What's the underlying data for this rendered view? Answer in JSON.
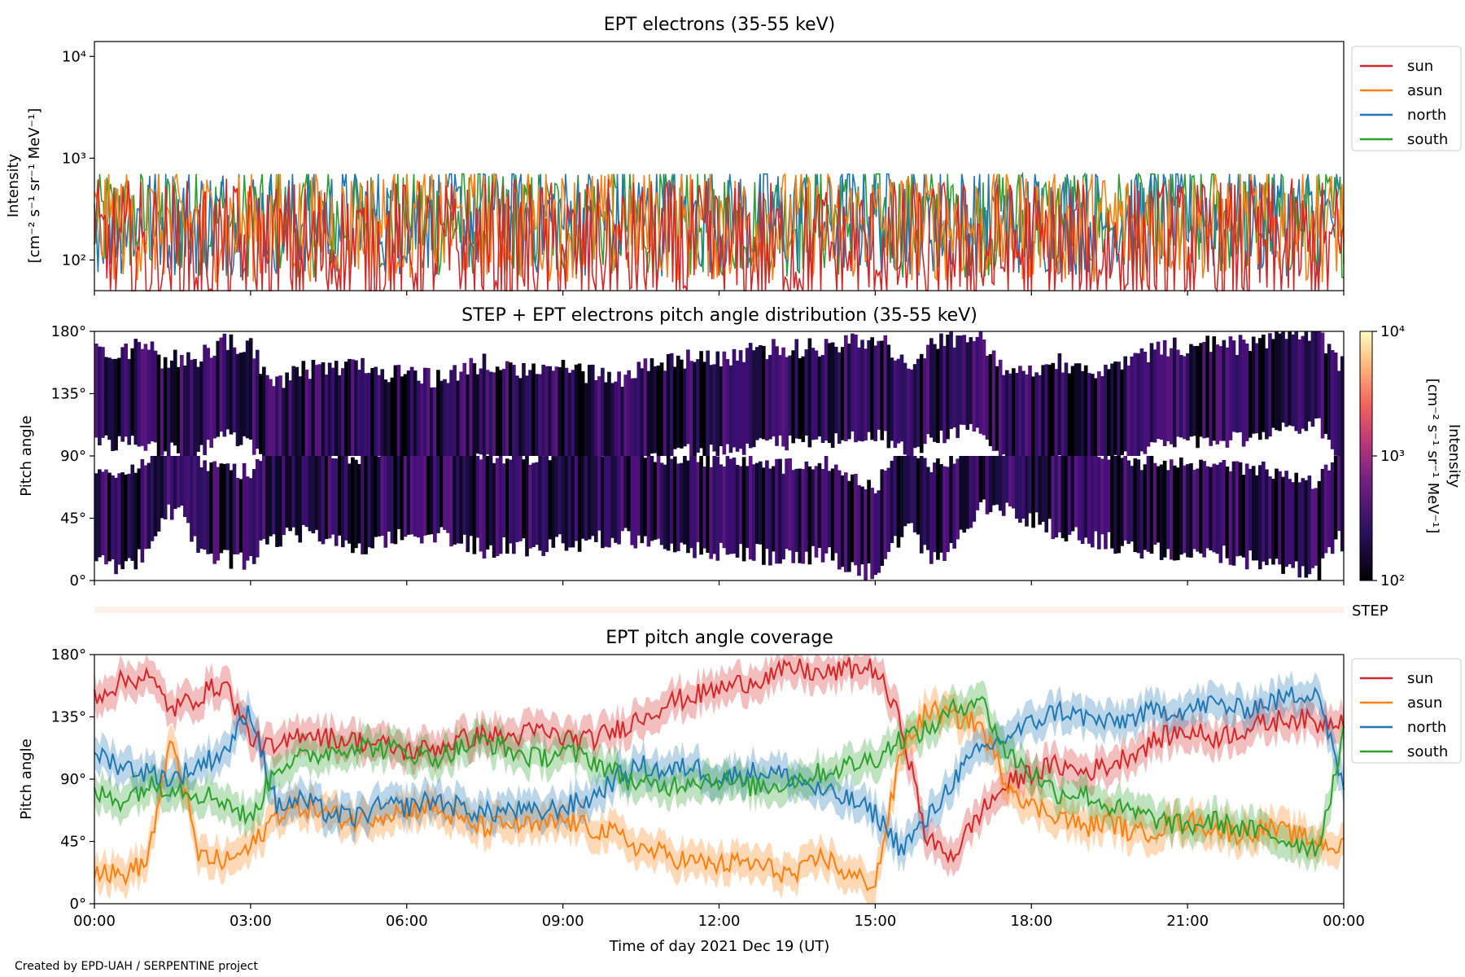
{
  "credit": "Created by EPD-UAH / SERPENTINE project",
  "xlabel": "Time of day 2021 Dec 19 (UT)",
  "xticks": [
    "00:00",
    "03:00",
    "06:00",
    "09:00",
    "12:00",
    "15:00",
    "18:00",
    "21:00",
    "00:00"
  ],
  "colors": {
    "sun": "#d62728",
    "asun": "#ff7f0e",
    "north": "#1f77b4",
    "south": "#2ca02c"
  },
  "chart_data": [
    {
      "id": "intensity",
      "type": "line",
      "title": "EPT electrons (35-55 keV)",
      "ylabel_line1": "Intensity",
      "ylabel_line2": "[cm⁻² s⁻¹ sr⁻¹ MeV⁻¹]",
      "yscale": "log",
      "ylim": [
        50,
        14000
      ],
      "yticks": [
        {
          "value": 100,
          "label": "10²"
        },
        {
          "value": 1000,
          "label": "10³"
        },
        {
          "value": 10000,
          "label": "10⁴"
        }
      ],
      "xlim_hours": [
        0,
        24
      ],
      "legend": "outside-right",
      "series": [
        {
          "name": "sun",
          "color": "#d62728",
          "typical": 120,
          "spread": 0.45
        },
        {
          "name": "asun",
          "color": "#ff7f0e",
          "typical": 220,
          "spread": 0.35
        },
        {
          "name": "north",
          "color": "#1f77b4",
          "typical": 250,
          "spread": 0.35
        },
        {
          "name": "south",
          "color": "#2ca02c",
          "typical": 240,
          "spread": 0.35
        }
      ]
    },
    {
      "id": "pad",
      "type": "heatmap",
      "title": "STEP + EPT electrons pitch angle distribution (35-55 keV)",
      "ylabel": "Pitch angle",
      "ylim": [
        0,
        180
      ],
      "yticks": [
        {
          "value": 0,
          "label": "0°"
        },
        {
          "value": 45,
          "label": "45°"
        },
        {
          "value": 90,
          "label": "90°"
        },
        {
          "value": 135,
          "label": "135°"
        },
        {
          "value": 180,
          "label": "180°"
        }
      ],
      "colorbar": {
        "label_line1": "Intensity",
        "label_line2": "[cm⁻² s⁻¹ sr⁻¹ MeV⁻¹]",
        "scale": "log",
        "range": [
          100,
          10000
        ],
        "ticks": [
          {
            "value": 100,
            "label": "10²"
          },
          {
            "value": 1000,
            "label": "10³"
          },
          {
            "value": 10000,
            "label": "10⁴"
          }
        ]
      }
    },
    {
      "id": "step",
      "type": "heatmap",
      "label": "STEP"
    },
    {
      "id": "coverage",
      "type": "line",
      "title": "EPT pitch angle coverage",
      "ylabel": "Pitch angle",
      "ylim": [
        0,
        180
      ],
      "yticks": [
        {
          "value": 0,
          "label": "0°"
        },
        {
          "value": 45,
          "label": "45°"
        },
        {
          "value": 90,
          "label": "90°"
        },
        {
          "value": 135,
          "label": "135°"
        },
        {
          "value": 180,
          "label": "180°"
        }
      ],
      "x_hours": [
        0,
        0.5,
        1,
        1.5,
        2,
        2.5,
        3,
        3.5,
        4,
        4.5,
        5,
        5.5,
        6,
        6.5,
        7,
        7.5,
        8,
        8.5,
        9,
        9.5,
        10,
        10.5,
        11,
        11.5,
        12,
        12.5,
        13,
        13.5,
        14,
        14.5,
        15,
        15.5,
        16,
        16.5,
        17,
        17.5,
        18,
        18.5,
        19,
        19.5,
        20,
        20.5,
        21,
        21.5,
        22,
        22.5,
        23,
        23.5,
        24
      ],
      "band_halfwidth_deg": 12,
      "legend": "outside-right",
      "series": [
        {
          "name": "sun",
          "color": "#d62728",
          "values": [
            150,
            160,
            165,
            140,
            150,
            160,
            120,
            110,
            125,
            120,
            118,
            115,
            110,
            112,
            118,
            122,
            120,
            125,
            120,
            118,
            125,
            135,
            145,
            150,
            155,
            160,
            165,
            170,
            165,
            170,
            170,
            130,
            45,
            35,
            65,
            85,
            95,
            100,
            95,
            100,
            110,
            120,
            125,
            120,
            125,
            130,
            135,
            130,
            135
          ]
        },
        {
          "name": "asun",
          "color": "#ff7f0e",
          "values": [
            25,
            20,
            30,
            120,
            35,
            30,
            40,
            65,
            70,
            65,
            60,
            65,
            68,
            70,
            60,
            55,
            58,
            55,
            60,
            55,
            50,
            40,
            35,
            30,
            28,
            30,
            25,
            20,
            35,
            20,
            15,
            110,
            140,
            135,
            130,
            90,
            70,
            65,
            55,
            60,
            50,
            55,
            60,
            55,
            50,
            55,
            50,
            45,
            40
          ]
        },
        {
          "name": "north",
          "color": "#1f77b4",
          "values": [
            110,
            100,
            95,
            90,
            100,
            110,
            140,
            70,
            75,
            65,
            62,
            70,
            70,
            75,
            70,
            65,
            68,
            65,
            70,
            75,
            90,
            100,
            95,
            100,
            90,
            95,
            95,
            90,
            80,
            75,
            65,
            40,
            60,
            90,
            110,
            120,
            130,
            140,
            135,
            130,
            135,
            140,
            140,
            145,
            140,
            145,
            150,
            155,
            80
          ]
        },
        {
          "name": "south",
          "color": "#2ca02c",
          "values": [
            80,
            75,
            85,
            85,
            80,
            75,
            60,
            100,
            105,
            110,
            115,
            112,
            110,
            105,
            112,
            118,
            110,
            105,
            110,
            105,
            95,
            85,
            85,
            90,
            90,
            85,
            85,
            90,
            95,
            100,
            105,
            120,
            125,
            140,
            150,
            110,
            95,
            80,
            80,
            70,
            65,
            60,
            55,
            60,
            55,
            50,
            45,
            40,
            120
          ]
        }
      ]
    }
  ]
}
